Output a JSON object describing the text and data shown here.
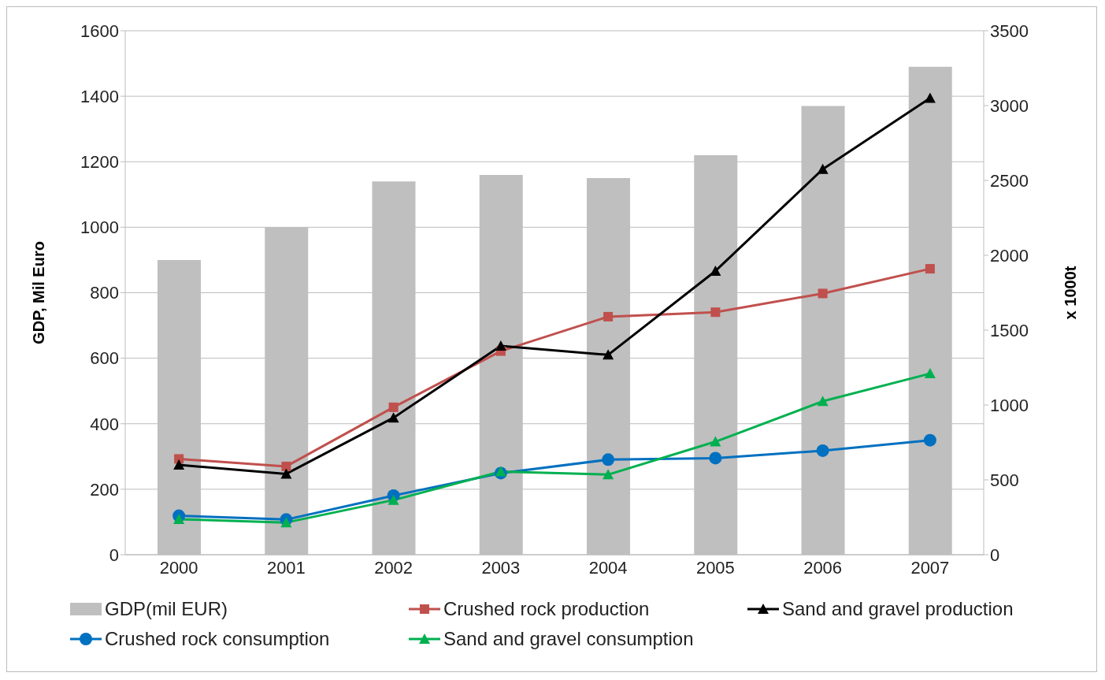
{
  "chart_data": {
    "type": "bar",
    "categories": [
      "2000",
      "2001",
      "2002",
      "2003",
      "2004",
      "2005",
      "2006",
      "2007"
    ],
    "ylabel": "GDP, Mil Euro",
    "y2label": "x 1000t",
    "ylim": [
      0,
      1600
    ],
    "yticks": [
      0,
      200,
      400,
      600,
      800,
      1000,
      1200,
      1400,
      1600
    ],
    "y2lim": [
      0,
      3500
    ],
    "y2ticks": [
      0,
      500,
      1000,
      1500,
      2000,
      2500,
      3000,
      3500
    ],
    "grid": "y",
    "legend": "bottom",
    "series": [
      {
        "name": "GDP(mil EUR)",
        "color": "#bfbfbf",
        "values": [
          900,
          1000,
          1140,
          1160,
          1150,
          1220,
          1370,
          1490
        ]
      },
      {
        "name": "Crushed rock production",
        "type": "line",
        "axis": "y2",
        "marker": "square",
        "color": "#c0504d",
        "values": [
          640,
          590,
          985,
          1360,
          1590,
          1620,
          1745,
          1910
        ]
      },
      {
        "name": "Sand and gravel production",
        "type": "line",
        "axis": "y2",
        "marker": "triangle",
        "color": "#000000",
        "values": [
          600,
          540,
          915,
          1395,
          1335,
          1895,
          2575,
          3050
        ]
      },
      {
        "name": "Crushed rock consumption",
        "type": "line",
        "axis": "y2",
        "marker": "circle",
        "color": "#0070c0",
        "values": [
          260,
          235,
          395,
          545,
          635,
          645,
          695,
          765
        ]
      },
      {
        "name": "Sand and gravel consumption",
        "type": "line",
        "axis": "y2",
        "marker": "triangle",
        "color": "#00b050",
        "values": [
          237,
          215,
          365,
          555,
          535,
          755,
          1025,
          1210
        ]
      }
    ]
  }
}
